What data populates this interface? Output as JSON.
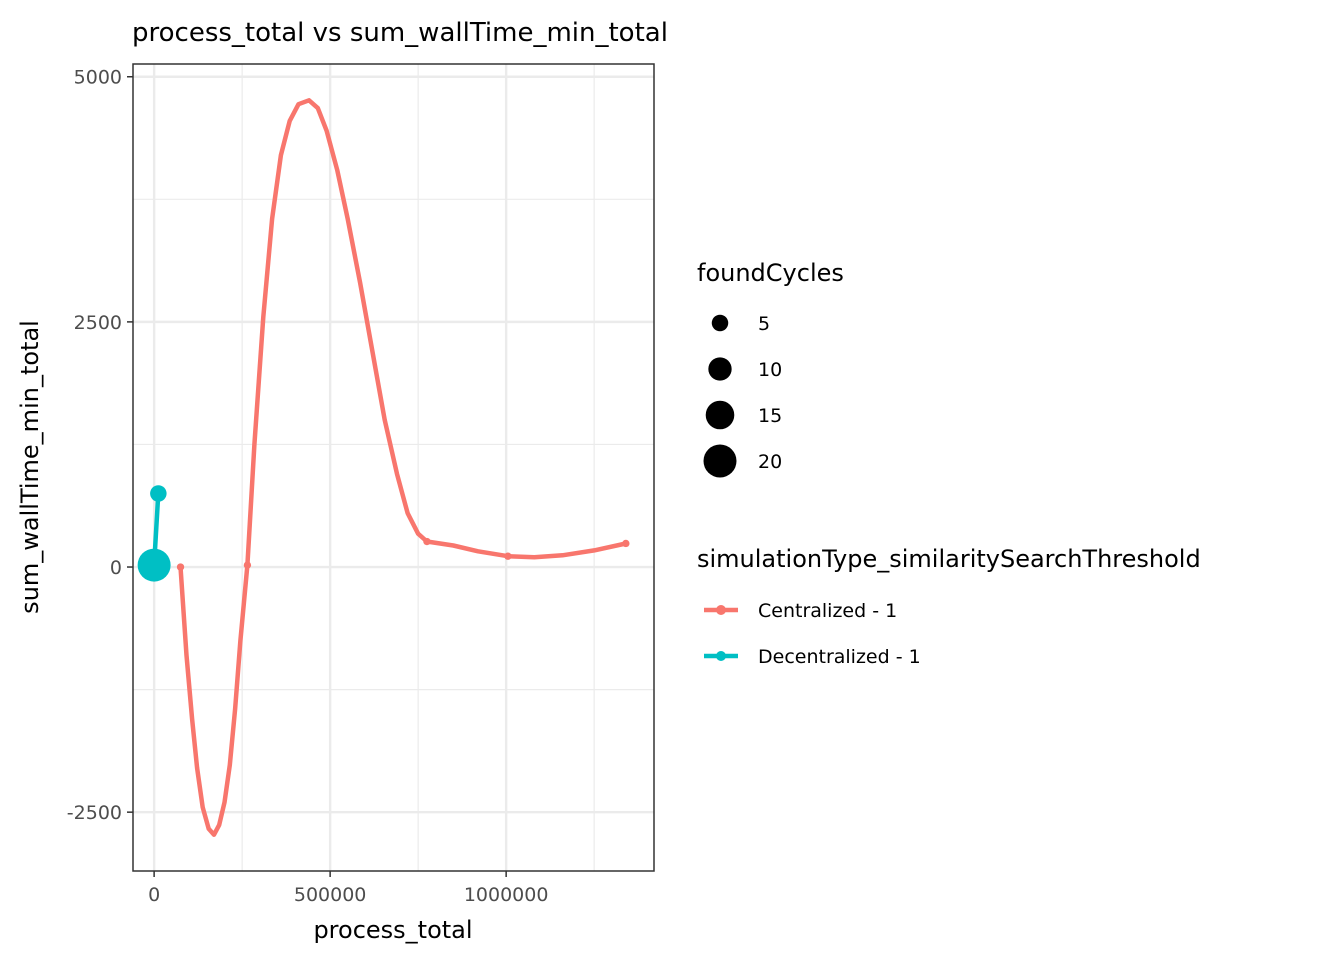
{
  "chart_data": {
    "type": "line",
    "title": "process_total  vs  sum_wallTime_min_total",
    "xlabel": "process_total",
    "ylabel": "sum_wallTime_min_total",
    "xlim": [
      -60000,
      1420000
    ],
    "ylim": [
      -3100,
      5130
    ],
    "x_ticks": [
      0,
      500000,
      1000000
    ],
    "x_tick_labels": [
      "0",
      "500000",
      "1000000"
    ],
    "y_ticks": [
      -2500,
      0,
      2500,
      5000
    ],
    "y_tick_labels": [
      "-2500",
      "0",
      "2500",
      "5000"
    ],
    "grid": true,
    "legend_position": "right",
    "size_legend": {
      "title": "foundCycles",
      "entries": [
        {
          "label": "5",
          "value": 5
        },
        {
          "label": "10",
          "value": 10
        },
        {
          "label": "15",
          "value": 15
        },
        {
          "label": "20",
          "value": 20
        }
      ]
    },
    "color_legend": {
      "title": "simulationType_similaritySearchThreshold"
    },
    "series": [
      {
        "name": "Centralized - 1",
        "color": "#F8766D",
        "points": [
          {
            "x": 75000,
            "y": 0,
            "size": 1
          },
          {
            "x": 265000,
            "y": 20,
            "size": 1
          },
          {
            "x": 775000,
            "y": 260,
            "size": 1
          },
          {
            "x": 1005000,
            "y": 110,
            "size": 1
          },
          {
            "x": 1340000,
            "y": 240,
            "size": 1
          }
        ],
        "smooth": [
          {
            "x": 75000,
            "y": 0
          },
          {
            "x": 92000,
            "y": -900
          },
          {
            "x": 108000,
            "y": -1550
          },
          {
            "x": 122000,
            "y": -2050
          },
          {
            "x": 138000,
            "y": -2450
          },
          {
            "x": 155000,
            "y": -2670
          },
          {
            "x": 170000,
            "y": -2730
          },
          {
            "x": 185000,
            "y": -2630
          },
          {
            "x": 200000,
            "y": -2400
          },
          {
            "x": 215000,
            "y": -2020
          },
          {
            "x": 230000,
            "y": -1450
          },
          {
            "x": 245000,
            "y": -750
          },
          {
            "x": 265000,
            "y": 20
          },
          {
            "x": 285000,
            "y": 1250
          },
          {
            "x": 310000,
            "y": 2550
          },
          {
            "x": 335000,
            "y": 3550
          },
          {
            "x": 360000,
            "y": 4200
          },
          {
            "x": 385000,
            "y": 4550
          },
          {
            "x": 410000,
            "y": 4720
          },
          {
            "x": 440000,
            "y": 4760
          },
          {
            "x": 465000,
            "y": 4680
          },
          {
            "x": 490000,
            "y": 4450
          },
          {
            "x": 520000,
            "y": 4050
          },
          {
            "x": 550000,
            "y": 3550
          },
          {
            "x": 585000,
            "y": 2900
          },
          {
            "x": 620000,
            "y": 2200
          },
          {
            "x": 655000,
            "y": 1500
          },
          {
            "x": 690000,
            "y": 950
          },
          {
            "x": 720000,
            "y": 550
          },
          {
            "x": 750000,
            "y": 340
          },
          {
            "x": 775000,
            "y": 260
          },
          {
            "x": 850000,
            "y": 220
          },
          {
            "x": 920000,
            "y": 160
          },
          {
            "x": 1005000,
            "y": 110
          },
          {
            "x": 1080000,
            "y": 100
          },
          {
            "x": 1160000,
            "y": 120
          },
          {
            "x": 1250000,
            "y": 170
          },
          {
            "x": 1340000,
            "y": 240
          }
        ]
      },
      {
        "name": "Decentralized - 1",
        "color": "#00BFC4",
        "points": [
          {
            "x": 0,
            "y": 20,
            "size": 20
          },
          {
            "x": 12000,
            "y": 750,
            "size": 5
          }
        ],
        "smooth": [
          {
            "x": 0,
            "y": 20
          },
          {
            "x": 12000,
            "y": 750
          }
        ]
      }
    ]
  }
}
